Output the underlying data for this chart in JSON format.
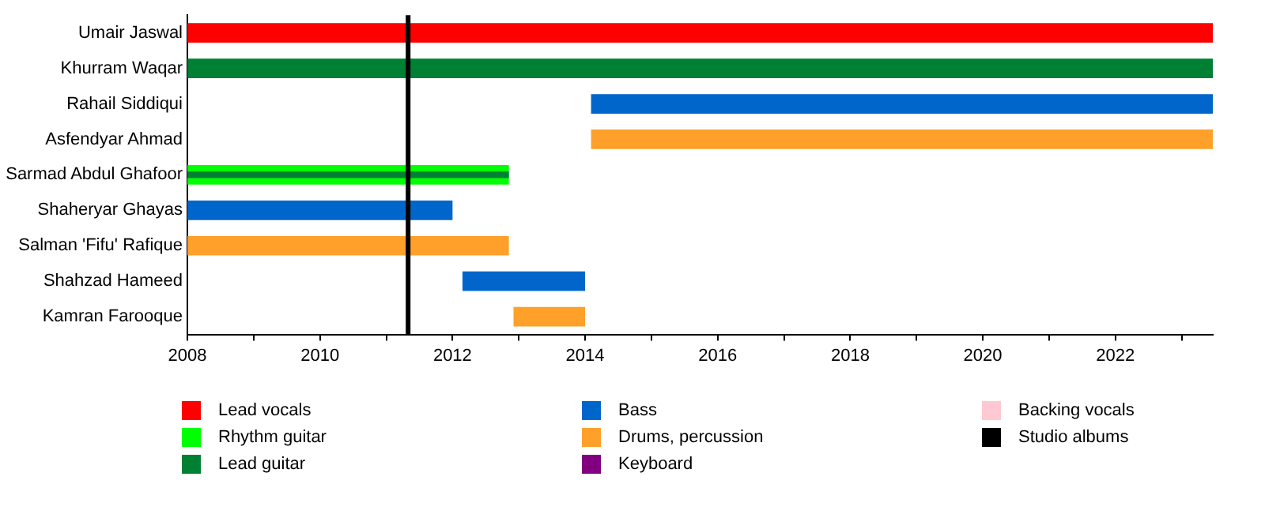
{
  "chart_data": {
    "type": "bar",
    "orientation": "horizontal",
    "grid": false,
    "legend": "bottom",
    "categories": [
      "Umair Jaswal",
      "Khurram Waqar",
      "Rahail Siddiqui",
      "Asfendyar Ahmad",
      "Sarmad Abdul Ghafoor",
      "Shaheryar Ghayas",
      "Salman 'Fifu' Rafique",
      "Shahzad Hameed",
      "Kamran Farooque"
    ],
    "series": [
      {
        "name": "Lead vocals",
        "color": "#ff0000",
        "base": [
          2008,
          null,
          null,
          null,
          null,
          null,
          null,
          null,
          null
        ],
        "values": [
          15.47,
          null,
          null,
          null,
          null,
          null,
          null,
          null,
          null
        ]
      },
      {
        "name": "Rhythm guitar",
        "color": "#00ff00",
        "base": [
          null,
          null,
          null,
          null,
          2008,
          null,
          null,
          null,
          null
        ],
        "values": [
          null,
          null,
          null,
          null,
          4.85,
          null,
          null,
          null,
          null
        ]
      },
      {
        "name": "Lead guitar",
        "color": "#008033",
        "base": [
          null,
          2008,
          null,
          null,
          2008,
          null,
          null,
          null,
          null
        ],
        "values": [
          null,
          15.47,
          null,
          null,
          4.85,
          null,
          null,
          null,
          null
        ]
      },
      {
        "name": "Bass",
        "color": "#0066cc",
        "base": [
          null,
          null,
          2014.09,
          null,
          null,
          2008,
          null,
          2012.15,
          null
        ],
        "values": [
          null,
          null,
          9.38,
          null,
          null,
          4.0,
          null,
          1.85,
          null
        ]
      },
      {
        "name": "Drums, percussion",
        "color": "#ffa02a",
        "base": [
          null,
          null,
          null,
          2014.09,
          null,
          null,
          2008,
          null,
          2012.92
        ],
        "values": [
          null,
          null,
          null,
          9.38,
          null,
          null,
          4.85,
          null,
          1.08
        ]
      },
      {
        "name": "Keyboard",
        "color": "#800080",
        "base": [
          null,
          null,
          null,
          null,
          null,
          null,
          null,
          null,
          null
        ],
        "values": [
          null,
          null,
          null,
          null,
          null,
          null,
          null,
          null,
          null
        ]
      },
      {
        "name": "Backing vocals",
        "color": "#ffc8d2",
        "base": [
          null,
          null,
          null,
          null,
          null,
          null,
          null,
          null,
          null
        ],
        "values": [
          null,
          null,
          null,
          null,
          null,
          null,
          null,
          null,
          null
        ]
      }
    ],
    "xlim": [
      2008,
      2023.47
    ],
    "xticks": [
      2008,
      {
        "value": 2009,
        "label": null
      },
      2010,
      {
        "value": 2011,
        "label": null
      },
      2012,
      {
        "value": 2013,
        "label": null
      },
      2014,
      {
        "value": 2015,
        "label": null
      },
      2016,
      {
        "value": 2017,
        "label": null
      },
      2018,
      {
        "value": 2019,
        "label": null
      },
      2020,
      {
        "value": 2021,
        "label": null
      },
      2022,
      {
        "value": 2023,
        "label": null
      }
    ],
    "ref_lines": [
      {
        "axis": "x",
        "value": 2011.33,
        "label": "Studio albums",
        "color": "#000000"
      }
    ]
  }
}
